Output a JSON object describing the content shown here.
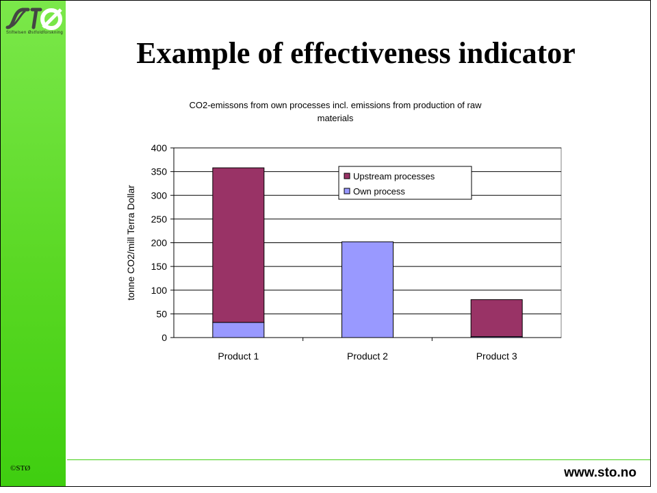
{
  "branding": {
    "logo_text": "STØ",
    "logo_subtitle": "Stiftelsen Østfoldforskning",
    "copyright": "©STØ",
    "url": "www.sto.no"
  },
  "slide": {
    "title": "Example of effectiveness indicator"
  },
  "colors": {
    "sidebar": "#5ad824",
    "upstream": "#993366",
    "own": "#9999ff"
  },
  "chart_data": {
    "type": "bar",
    "stacked": true,
    "title_lines": [
      "CO2-emissons from own processes incl. emissions from production of raw",
      "materials"
    ],
    "xlabel": "",
    "ylabel": "tonne CO2/mill Terra Dollar",
    "categories": [
      "Product 1",
      "Product 2",
      "Product 3"
    ],
    "series": [
      {
        "name": "Own process",
        "values": [
          32,
          202,
          2
        ],
        "color": "#9999ff"
      },
      {
        "name": "Upstream processes",
        "values": [
          326,
          0,
          78
        ],
        "color": "#993366"
      }
    ],
    "legend_order": [
      "Upstream processes",
      "Own process"
    ],
    "ylim": [
      0,
      400
    ],
    "yticks": [
      0,
      50,
      100,
      150,
      200,
      250,
      300,
      350,
      400
    ],
    "grid": true,
    "legend_position": "top-center"
  }
}
